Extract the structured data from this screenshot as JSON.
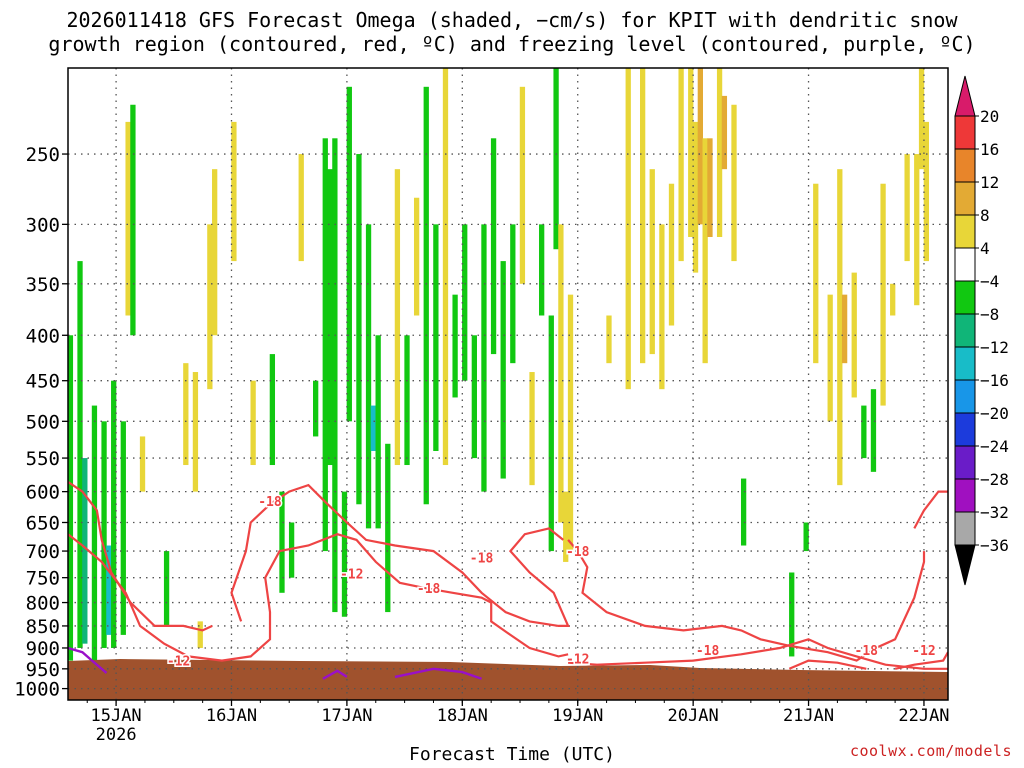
{
  "title_line1": "2026011418 GFS Forecast Omega (shaded, −cm/s) for KPIT with dendritic snow",
  "title_line2": "growth region (contoured, red, ºC) and freezing level (contoured, purple, ºC)",
  "credit": "coolwx.com/models",
  "chart_data": {
    "type": "heatmap",
    "xlabel": "Forecast Time (UTC)",
    "x_ticks": [
      {
        "label": "15JAN",
        "sub": "2026",
        "hour": 10
      },
      {
        "label": "16JAN",
        "hour": 34
      },
      {
        "label": "17JAN",
        "hour": 58
      },
      {
        "label": "18JAN",
        "hour": 82
      },
      {
        "label": "19JAN",
        "hour": 106
      },
      {
        "label": "20JAN",
        "hour": 130
      },
      {
        "label": "21JAN",
        "hour": 154
      },
      {
        "label": "22JAN",
        "hour": 178
      }
    ],
    "x_range_hours": [
      0,
      183
    ],
    "y_ticks": [
      250,
      300,
      350,
      400,
      450,
      500,
      550,
      600,
      650,
      700,
      750,
      800,
      850,
      900,
      950,
      1000
    ],
    "y_range_hpa": [
      200,
      1030
    ],
    "y_scale": "log",
    "colorbar": {
      "labels": [
        "20",
        "16",
        "12",
        "8",
        "4",
        "−4",
        "−8",
        "−12",
        "−16",
        "−20",
        "−24",
        "−28",
        "−32",
        "−36"
      ],
      "colors": [
        "#d81b6a",
        "#ee3838",
        "#e8852a",
        "#e3aa34",
        "#e8d638",
        "#ffffff",
        "#11c811",
        "#10b578",
        "#18bcc8",
        "#1896e8",
        "#1c3bdc",
        "#6a1cc8",
        "#a010c0",
        "#a8a8a8",
        "#000000"
      ]
    },
    "contour_labels": {
      "dgz_red": [
        "-18",
        "-18",
        "-18",
        "-18",
        "-12",
        "-12",
        "-12",
        "-18",
        "-18",
        "-12"
      ],
      "color_red": "#ee4444",
      "color_freezing": "#9a10c8",
      "ground_color": "#a0522d"
    },
    "shading": [
      {
        "h": 0.5,
        "p1": 400,
        "p2": 930,
        "v": -6
      },
      {
        "h": 2.5,
        "p1": 330,
        "p2": 900,
        "v": -6
      },
      {
        "h": 3.5,
        "p1": 550,
        "p2": 890,
        "v": -9
      },
      {
        "h": 5.5,
        "p1": 480,
        "p2": 930,
        "v": -6
      },
      {
        "h": 7.5,
        "p1": 500,
        "p2": 900,
        "v": -6
      },
      {
        "h": 8.5,
        "p1": 690,
        "p2": 870,
        "v": -13
      },
      {
        "h": 9.5,
        "p1": 450,
        "p2": 900,
        "v": -6
      },
      {
        "h": 11.5,
        "p1": 500,
        "p2": 870,
        "v": -6
      },
      {
        "h": 12.5,
        "p1": 230,
        "p2": 380,
        "v": 5
      },
      {
        "h": 13.5,
        "p1": 220,
        "p2": 400,
        "v": -6
      },
      {
        "h": 15.5,
        "p1": 520,
        "p2": 600,
        "v": 5
      },
      {
        "h": 20.5,
        "p1": 700,
        "p2": 850,
        "v": -6
      },
      {
        "h": 24.5,
        "p1": 430,
        "p2": 560,
        "v": 5
      },
      {
        "h": 26.5,
        "p1": 440,
        "p2": 600,
        "v": 6
      },
      {
        "h": 27.5,
        "p1": 840,
        "p2": 900,
        "v": 5
      },
      {
        "h": 29.5,
        "p1": 300,
        "p2": 460,
        "v": 5
      },
      {
        "h": 30.5,
        "p1": 260,
        "p2": 400,
        "v": 5
      },
      {
        "h": 34.5,
        "p1": 230,
        "p2": 330,
        "v": 5
      },
      {
        "h": 38.5,
        "p1": 450,
        "p2": 560,
        "v": 5
      },
      {
        "h": 42.5,
        "p1": 420,
        "p2": 560,
        "v": -6
      },
      {
        "h": 44.5,
        "p1": 600,
        "p2": 780,
        "v": -6
      },
      {
        "h": 46.5,
        "p1": 650,
        "p2": 750,
        "v": -6
      },
      {
        "h": 48.5,
        "p1": 250,
        "p2": 330,
        "v": 5
      },
      {
        "h": 51.5,
        "p1": 450,
        "p2": 520,
        "v": -6
      },
      {
        "h": 53.5,
        "p1": 240,
        "p2": 700,
        "v": -6
      },
      {
        "h": 54.5,
        "p1": 260,
        "p2": 560,
        "v": -7
      },
      {
        "h": 55.5,
        "p1": 240,
        "p2": 820,
        "v": -7
      },
      {
        "h": 57.5,
        "p1": 600,
        "p2": 830,
        "v": -6
      },
      {
        "h": 58.5,
        "p1": 210,
        "p2": 500,
        "v": -6
      },
      {
        "h": 60.5,
        "p1": 250,
        "p2": 620,
        "v": -6
      },
      {
        "h": 62.5,
        "p1": 300,
        "p2": 660,
        "v": -7
      },
      {
        "h": 63.5,
        "p1": 480,
        "p2": 540,
        "v": -13
      },
      {
        "h": 64.5,
        "p1": 400,
        "p2": 660,
        "v": -6
      },
      {
        "h": 66.5,
        "p1": 530,
        "p2": 820,
        "v": -6
      },
      {
        "h": 68.5,
        "p1": 260,
        "p2": 560,
        "v": 5
      },
      {
        "h": 70.5,
        "p1": 400,
        "p2": 560,
        "v": -6
      },
      {
        "h": 72.5,
        "p1": 280,
        "p2": 380,
        "v": 5
      },
      {
        "h": 74.5,
        "p1": 210,
        "p2": 620,
        "v": -6
      },
      {
        "h": 76.5,
        "p1": 300,
        "p2": 540,
        "v": -6
      },
      {
        "h": 78.5,
        "p1": 200,
        "p2": 560,
        "v": 5
      },
      {
        "h": 80.5,
        "p1": 360,
        "p2": 470,
        "v": -6
      },
      {
        "h": 82.5,
        "p1": 300,
        "p2": 450,
        "v": -6
      },
      {
        "h": 84.5,
        "p1": 400,
        "p2": 550,
        "v": -6
      },
      {
        "h": 86.5,
        "p1": 300,
        "p2": 600,
        "v": -6
      },
      {
        "h": 88.5,
        "p1": 240,
        "p2": 420,
        "v": -6
      },
      {
        "h": 90.5,
        "p1": 330,
        "p2": 580,
        "v": -6
      },
      {
        "h": 92.5,
        "p1": 300,
        "p2": 430,
        "v": -6
      },
      {
        "h": 94.5,
        "p1": 210,
        "p2": 350,
        "v": 5
      },
      {
        "h": 96.5,
        "p1": 440,
        "p2": 590,
        "v": 5
      },
      {
        "h": 98.5,
        "p1": 300,
        "p2": 380,
        "v": -6
      },
      {
        "h": 100.5,
        "p1": 380,
        "p2": 700,
        "v": -6
      },
      {
        "h": 101.5,
        "p1": 200,
        "p2": 320,
        "v": -6
      },
      {
        "h": 102.5,
        "p1": 300,
        "p2": 650,
        "v": 5
      },
      {
        "h": 103.5,
        "p1": 600,
        "p2": 720,
        "v": 5
      },
      {
        "h": 104.5,
        "p1": 360,
        "p2": 700,
        "v": 5
      },
      {
        "h": 112.5,
        "p1": 380,
        "p2": 430,
        "v": 5
      },
      {
        "h": 116.5,
        "p1": 200,
        "p2": 460,
        "v": 5
      },
      {
        "h": 119.5,
        "p1": 200,
        "p2": 430,
        "v": 5
      },
      {
        "h": 121.5,
        "p1": 260,
        "p2": 420,
        "v": 6
      },
      {
        "h": 123.5,
        "p1": 300,
        "p2": 460,
        "v": 5
      },
      {
        "h": 125.5,
        "p1": 270,
        "p2": 390,
        "v": 5
      },
      {
        "h": 127.5,
        "p1": 200,
        "p2": 330,
        "v": 5
      },
      {
        "h": 129.5,
        "p1": 200,
        "p2": 310,
        "v": 5
      },
      {
        "h": 130.5,
        "p1": 230,
        "p2": 340,
        "v": 6
      },
      {
        "h": 131.5,
        "p1": 200,
        "p2": 300,
        "v": 9
      },
      {
        "h": 132.5,
        "p1": 240,
        "p2": 430,
        "v": 5
      },
      {
        "h": 133.5,
        "p1": 240,
        "p2": 310,
        "v": 10
      },
      {
        "h": 135.5,
        "p1": 200,
        "p2": 310,
        "v": 5
      },
      {
        "h": 136.5,
        "p1": 215,
        "p2": 260,
        "v": 9
      },
      {
        "h": 138.5,
        "p1": 220,
        "p2": 330,
        "v": 5
      },
      {
        "h": 140.5,
        "p1": 580,
        "p2": 690,
        "v": -6
      },
      {
        "h": 150.5,
        "p1": 740,
        "p2": 920,
        "v": -6
      },
      {
        "h": 153.5,
        "p1": 650,
        "p2": 700,
        "v": -6
      },
      {
        "h": 155.5,
        "p1": 270,
        "p2": 430,
        "v": 5
      },
      {
        "h": 158.5,
        "p1": 360,
        "p2": 500,
        "v": 5
      },
      {
        "h": 160.5,
        "p1": 260,
        "p2": 590,
        "v": 5
      },
      {
        "h": 161.5,
        "p1": 360,
        "p2": 430,
        "v": 8
      },
      {
        "h": 163.5,
        "p1": 340,
        "p2": 470,
        "v": 5
      },
      {
        "h": 165.5,
        "p1": 480,
        "p2": 550,
        "v": -6
      },
      {
        "h": 167.5,
        "p1": 460,
        "p2": 570,
        "v": -6
      },
      {
        "h": 169.5,
        "p1": 270,
        "p2": 480,
        "v": 5
      },
      {
        "h": 171.5,
        "p1": 350,
        "p2": 380,
        "v": 5
      },
      {
        "h": 174.5,
        "p1": 250,
        "p2": 330,
        "v": 5
      },
      {
        "h": 176.5,
        "p1": 250,
        "p2": 370,
        "v": 5
      },
      {
        "h": 177.5,
        "p1": 200,
        "p2": 260,
        "v": 5
      },
      {
        "h": 178.5,
        "p1": 230,
        "p2": 330,
        "v": 5
      }
    ]
  }
}
